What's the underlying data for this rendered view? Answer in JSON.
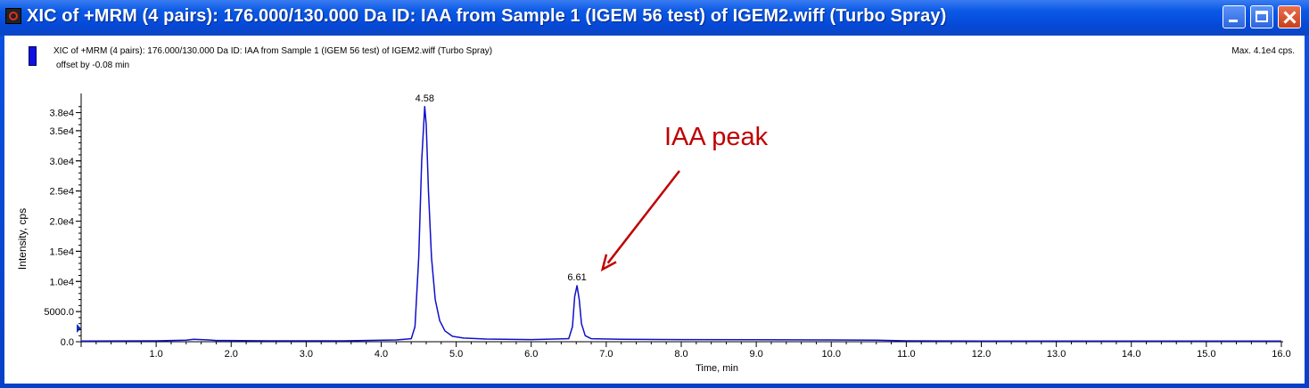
{
  "window": {
    "title": "XIC of +MRM (4 pairs): 176.000/130.000 Da ID: IAA from Sample 1 (IGEM 56 test) of IGEM2.wiff (Turbo Spray)",
    "controls": [
      "minimize-icon",
      "maximize-icon",
      "close-icon"
    ]
  },
  "chart_data": {
    "type": "line",
    "legend_entry": "XIC of +MRM (4 pairs): 176.000/130.000 Da ID: IAA from Sample 1 (IGEM 56 test) of IGEM2.wiff (Turbo Spray)",
    "offset_note": "offset by -0.08 min",
    "max_label": "Max. 4.1e4 cps.",
    "xlabel": "Time, min",
    "ylabel": "Intensity, cps",
    "xlim": [
      0,
      16.0
    ],
    "ylim": [
      0,
      40000
    ],
    "x_ticks": [
      "1.0",
      "2.0",
      "3.0",
      "4.0",
      "5.0",
      "6.0",
      "7.0",
      "8.0",
      "9.0",
      "10.0",
      "11.0",
      "12.0",
      "13.0",
      "14.0",
      "15.0",
      "16.0"
    ],
    "y_ticks": [
      {
        "value": 0,
        "label": "0.0"
      },
      {
        "value": 5000,
        "label": "5000.0"
      },
      {
        "value": 10000,
        "label": "1.0e4"
      },
      {
        "value": 15000,
        "label": "1.5e4"
      },
      {
        "value": 20000,
        "label": "2.0e4"
      },
      {
        "value": 25000,
        "label": "2.5e4"
      },
      {
        "value": 30000,
        "label": "3.0e4"
      },
      {
        "value": 35000,
        "label": "3.5e4"
      },
      {
        "value": 38000,
        "label": "3.8e4"
      }
    ],
    "series": [
      {
        "color": "#1010c8",
        "x": [
          0.0,
          1.0,
          1.4,
          1.5,
          1.6,
          1.7,
          1.8,
          2.5,
          3.5,
          4.2,
          4.4,
          4.45,
          4.5,
          4.54,
          4.58,
          4.6,
          4.63,
          4.67,
          4.72,
          4.78,
          4.85,
          4.95,
          5.1,
          5.4,
          6.0,
          6.5,
          6.55,
          6.58,
          6.61,
          6.64,
          6.67,
          6.72,
          6.8,
          7.2,
          8.0,
          9.0,
          10.0,
          10.6,
          11.0,
          12.0,
          13.0,
          14.0,
          15.0,
          16.0
        ],
        "y": [
          120,
          150,
          250,
          400,
          350,
          300,
          200,
          150,
          150,
          300,
          500,
          2500,
          14000,
          30000,
          39000,
          36000,
          25000,
          14000,
          7000,
          3500,
          1800,
          900,
          600,
          450,
          350,
          500,
          2500,
          7500,
          9300,
          7000,
          3000,
          1000,
          500,
          400,
          350,
          320,
          300,
          250,
          150,
          120,
          110,
          100,
          100,
          100
        ]
      }
    ],
    "peak_labels": [
      {
        "x": 4.58,
        "y": 39000,
        "text": "4.58"
      },
      {
        "x": 6.61,
        "y": 9300,
        "text": "6.61"
      }
    ],
    "annotation": {
      "text": "IAA peak",
      "points_to_x": 6.95,
      "points_to_y": 12000,
      "color": "#c00000"
    }
  }
}
